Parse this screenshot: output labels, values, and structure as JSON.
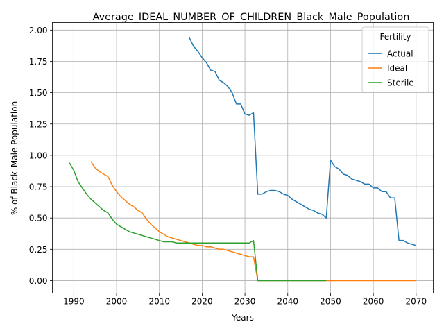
{
  "chart_data": {
    "type": "line",
    "title": "Average_IDEAL_NUMBER_OF_CHILDREN_Black_Male_Population",
    "xlabel": "Years",
    "ylabel": "% of Black_Male Population",
    "xlim": [
      1985,
      2074
    ],
    "ylim": [
      -0.1,
      2.06
    ],
    "xticks": [
      1990,
      2000,
      2010,
      2020,
      2030,
      2040,
      2050,
      2060,
      2070
    ],
    "yticks": [
      0.0,
      0.25,
      0.5,
      0.75,
      1.0,
      1.25,
      1.5,
      1.75,
      2.0
    ],
    "ytick_labels": [
      "0.00",
      "0.25",
      "0.50",
      "0.75",
      "1.00",
      "1.25",
      "1.50",
      "1.75",
      "2.00"
    ],
    "grid": true,
    "legend": {
      "title": "Fertility",
      "placement": "top-right"
    },
    "series": [
      {
        "name": "Actual",
        "color": "#1f77b4",
        "x": [
          2017,
          2018,
          2019,
          2020,
          2021,
          2022,
          2023,
          2024,
          2025,
          2026,
          2027,
          2028,
          2029,
          2030,
          2031,
          2032,
          2033,
          2034,
          2035,
          2036,
          2037,
          2038,
          2039,
          2040,
          2041,
          2042,
          2043,
          2044,
          2045,
          2046,
          2047,
          2048,
          2049,
          2050,
          2051,
          2052,
          2053,
          2054,
          2055,
          2056,
          2057,
          2058,
          2059,
          2060,
          2061,
          2062,
          2063,
          2064,
          2065,
          2066,
          2067,
          2068,
          2069,
          2070
        ],
        "y": [
          1.94,
          1.87,
          1.83,
          1.78,
          1.74,
          1.68,
          1.67,
          1.6,
          1.58,
          1.55,
          1.5,
          1.41,
          1.41,
          1.33,
          1.32,
          1.34,
          0.69,
          0.69,
          0.71,
          0.72,
          0.72,
          0.71,
          0.69,
          0.68,
          0.65,
          0.63,
          0.61,
          0.59,
          0.57,
          0.56,
          0.54,
          0.53,
          0.5,
          0.96,
          0.91,
          0.89,
          0.85,
          0.84,
          0.81,
          0.8,
          0.79,
          0.77,
          0.77,
          0.74,
          0.74,
          0.71,
          0.71,
          0.66,
          0.66,
          0.32,
          0.32,
          0.3,
          0.29,
          0.28
        ]
      },
      {
        "name": "Ideal",
        "color": "#ff7f0e",
        "x": [
          1994,
          1995,
          1996,
          1997,
          1998,
          1999,
          2000,
          2001,
          2002,
          2003,
          2004,
          2005,
          2006,
          2007,
          2008,
          2009,
          2010,
          2011,
          2012,
          2013,
          2014,
          2015,
          2016,
          2017,
          2018,
          2019,
          2020,
          2021,
          2022,
          2023,
          2024,
          2025,
          2026,
          2027,
          2028,
          2029,
          2030,
          2031,
          2032,
          2033,
          2034,
          2035,
          2040,
          2045,
          2050,
          2055,
          2060,
          2065,
          2070
        ],
        "y": [
          0.95,
          0.9,
          0.87,
          0.85,
          0.83,
          0.76,
          0.71,
          0.67,
          0.64,
          0.61,
          0.59,
          0.56,
          0.54,
          0.49,
          0.45,
          0.42,
          0.39,
          0.37,
          0.35,
          0.34,
          0.33,
          0.32,
          0.31,
          0.3,
          0.29,
          0.28,
          0.28,
          0.27,
          0.27,
          0.26,
          0.25,
          0.25,
          0.24,
          0.23,
          0.22,
          0.21,
          0.2,
          0.19,
          0.19,
          0.0,
          0.0,
          0.0,
          0.0,
          0.0,
          0.0,
          0.0,
          0.0,
          0.0,
          0.0
        ]
      },
      {
        "name": "Sterile",
        "color": "#2ca02c",
        "x": [
          1989,
          1990,
          1991,
          1992,
          1993,
          1994,
          1995,
          1996,
          1997,
          1998,
          1999,
          2000,
          2001,
          2002,
          2003,
          2004,
          2005,
          2006,
          2007,
          2008,
          2009,
          2010,
          2011,
          2012,
          2013,
          2014,
          2015,
          2016,
          2017,
          2018,
          2019,
          2020,
          2025,
          2030,
          2031,
          2032,
          2033,
          2034,
          2040,
          2045,
          2049
        ],
        "y": [
          0.94,
          0.88,
          0.79,
          0.74,
          0.69,
          0.65,
          0.62,
          0.59,
          0.56,
          0.54,
          0.49,
          0.45,
          0.43,
          0.41,
          0.39,
          0.38,
          0.37,
          0.36,
          0.35,
          0.34,
          0.33,
          0.32,
          0.31,
          0.31,
          0.31,
          0.3,
          0.3,
          0.3,
          0.3,
          0.3,
          0.3,
          0.3,
          0.3,
          0.3,
          0.3,
          0.32,
          0.0,
          0.0,
          0.0,
          0.0,
          0.0
        ]
      }
    ]
  }
}
